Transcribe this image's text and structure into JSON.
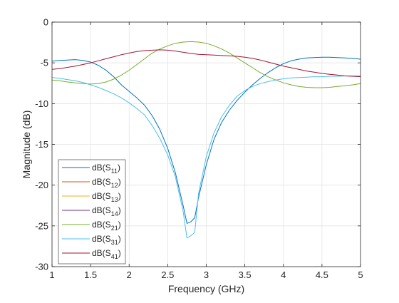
{
  "chart_data": {
    "type": "line",
    "title": "",
    "xlabel": "Frequency (GHz)",
    "ylabel": "Magnitude (dB)",
    "xlim": [
      1,
      5
    ],
    "ylim": [
      -30,
      0
    ],
    "x_ticks": [
      1,
      1.5,
      2,
      2.5,
      3,
      3.5,
      4,
      4.5,
      5
    ],
    "x_tick_labels": [
      "1",
      "1.5",
      "2",
      "2.5",
      "3",
      "3.5",
      "4",
      "4.5",
      "5"
    ],
    "y_ticks": [
      0,
      -5,
      -10,
      -15,
      -20,
      -25,
      -30
    ],
    "y_tick_labels": [
      "0",
      "-5",
      "-10",
      "-15",
      "-20",
      "-25",
      "-30"
    ],
    "grid": true,
    "legend_position": "bottom-left",
    "legend": [
      {
        "prefix": "dB(S",
        "sub": "11",
        "suffix": ")",
        "color": "#0072BD"
      },
      {
        "prefix": "dB(S",
        "sub": "12",
        "suffix": ")",
        "color": "#D95319"
      },
      {
        "prefix": "dB(S",
        "sub": "13",
        "suffix": ")",
        "color": "#EDB120"
      },
      {
        "prefix": "dB(S",
        "sub": "14",
        "suffix": ")",
        "color": "#7E2F8E"
      },
      {
        "prefix": "dB(S",
        "sub": "21",
        "suffix": ")",
        "color": "#77AC30"
      },
      {
        "prefix": "dB(S",
        "sub": "31",
        "suffix": ")",
        "color": "#4DBEEE"
      },
      {
        "prefix": "dB(S",
        "sub": "41",
        "suffix": ")",
        "color": "#A2142F"
      }
    ],
    "series": [
      {
        "color": "#0072BD",
        "x": [
          1.0,
          1.1,
          1.2,
          1.3,
          1.4,
          1.5,
          1.6,
          1.7,
          1.8,
          1.9,
          2.0,
          2.1,
          2.2,
          2.3,
          2.4,
          2.5,
          2.6,
          2.7,
          2.75,
          2.8,
          2.85,
          2.9,
          3.0,
          3.1,
          3.2,
          3.3,
          3.4,
          3.5,
          3.6,
          3.7,
          3.8,
          3.9,
          4.0,
          4.1,
          4.2,
          4.3,
          4.4,
          4.5,
          4.6,
          4.7,
          4.8,
          4.9,
          5.0
        ],
        "y": [
          -4.8,
          -4.7,
          -4.65,
          -4.6,
          -4.7,
          -4.9,
          -5.3,
          -5.9,
          -6.7,
          -7.7,
          -8.5,
          -9.3,
          -10.2,
          -11.5,
          -13.2,
          -15.5,
          -18.5,
          -22.5,
          -24.7,
          -24.5,
          -24.0,
          -21.5,
          -17.5,
          -14.4,
          -12.3,
          -10.8,
          -9.6,
          -8.6,
          -7.7,
          -6.9,
          -6.2,
          -5.6,
          -5.1,
          -4.75,
          -4.55,
          -4.4,
          -4.35,
          -4.3,
          -4.3,
          -4.35,
          -4.4,
          -4.45,
          -4.55
        ]
      },
      {
        "color": "#77AC30",
        "x": [
          1.0,
          1.1,
          1.2,
          1.3,
          1.4,
          1.5,
          1.6,
          1.7,
          1.8,
          1.9,
          2.0,
          2.1,
          2.2,
          2.3,
          2.4,
          2.5,
          2.6,
          2.7,
          2.8,
          2.9,
          3.0,
          3.1,
          3.2,
          3.3,
          3.4,
          3.5,
          3.6,
          3.7,
          3.8,
          3.9,
          4.0,
          4.1,
          4.2,
          4.3,
          4.4,
          4.5,
          4.6,
          4.7,
          4.8,
          4.9,
          5.0
        ],
        "y": [
          -7.1,
          -7.2,
          -7.35,
          -7.45,
          -7.55,
          -7.6,
          -7.55,
          -7.35,
          -7.0,
          -6.5,
          -5.9,
          -5.2,
          -4.5,
          -3.8,
          -3.3,
          -2.9,
          -2.6,
          -2.45,
          -2.4,
          -2.45,
          -2.6,
          -2.9,
          -3.3,
          -3.8,
          -4.4,
          -5.0,
          -5.6,
          -6.2,
          -6.7,
          -7.1,
          -7.45,
          -7.7,
          -7.9,
          -8.0,
          -8.05,
          -8.05,
          -8.0,
          -7.9,
          -7.8,
          -7.7,
          -7.55
        ]
      },
      {
        "color": "#4DBEEE",
        "x": [
          1.0,
          1.1,
          1.2,
          1.3,
          1.4,
          1.5,
          1.6,
          1.7,
          1.8,
          1.9,
          2.0,
          2.1,
          2.2,
          2.3,
          2.4,
          2.5,
          2.6,
          2.7,
          2.75,
          2.8,
          2.85,
          2.9,
          3.0,
          3.1,
          3.2,
          3.3,
          3.4,
          3.5,
          3.6,
          3.7,
          3.8,
          3.9,
          4.0,
          4.1,
          4.2,
          4.3,
          4.4,
          4.5,
          4.6,
          4.7,
          4.8,
          4.9,
          5.0
        ],
        "y": [
          -6.8,
          -6.9,
          -7.05,
          -7.2,
          -7.4,
          -7.7,
          -8.0,
          -8.4,
          -8.8,
          -9.3,
          -9.9,
          -10.6,
          -11.4,
          -12.7,
          -14.3,
          -16.3,
          -19.0,
          -23.2,
          -26.5,
          -26.2,
          -25.8,
          -21.0,
          -16.5,
          -13.6,
          -11.6,
          -10.2,
          -9.1,
          -8.4,
          -7.9,
          -7.55,
          -7.3,
          -7.1,
          -6.95,
          -6.85,
          -6.8,
          -6.75,
          -6.7,
          -6.7,
          -6.65,
          -6.65,
          -6.6,
          -6.6,
          -6.6
        ]
      },
      {
        "color": "#A2142F",
        "x": [
          1.0,
          1.1,
          1.2,
          1.3,
          1.4,
          1.5,
          1.6,
          1.7,
          1.8,
          1.9,
          2.0,
          2.1,
          2.2,
          2.3,
          2.4,
          2.5,
          2.6,
          2.7,
          2.8,
          2.9,
          3.0,
          3.1,
          3.2,
          3.3,
          3.4,
          3.5,
          3.6,
          3.7,
          3.8,
          3.9,
          4.0,
          4.1,
          4.2,
          4.3,
          4.4,
          4.5,
          4.6,
          4.7,
          4.8,
          4.9,
          5.0
        ],
        "y": [
          -5.8,
          -5.7,
          -5.55,
          -5.4,
          -5.2,
          -5.0,
          -4.75,
          -4.5,
          -4.25,
          -4.0,
          -3.8,
          -3.6,
          -3.5,
          -3.45,
          -3.4,
          -3.45,
          -3.55,
          -3.7,
          -3.85,
          -3.95,
          -4.0,
          -4.05,
          -4.1,
          -4.15,
          -4.2,
          -4.3,
          -4.45,
          -4.65,
          -4.9,
          -5.15,
          -5.4,
          -5.6,
          -5.8,
          -6.0,
          -6.15,
          -6.3,
          -6.4,
          -6.5,
          -6.6,
          -6.65,
          -6.7
        ]
      }
    ]
  }
}
